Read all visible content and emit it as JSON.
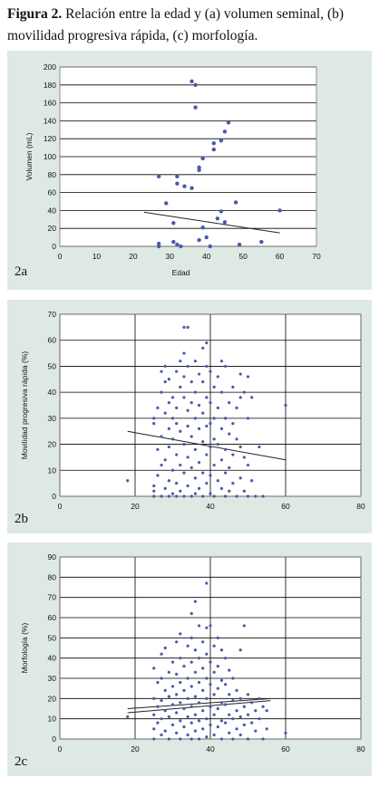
{
  "caption": {
    "label": "Figura 2.",
    "text": " Relación entre la edad y (a) volumen seminal, (b) movilidad progresiva rápida, (c) morfología."
  },
  "colors": {
    "panel_bg": "#dfe9e4",
    "marker": "#4a5aa8",
    "grid": "#000000",
    "trend": "#222222"
  },
  "chart_data": [
    {
      "panel_label": "2a",
      "type": "scatter",
      "xlabel": "Edad",
      "ylabel": "Volumen (mL)",
      "xlim": [
        0,
        70
      ],
      "ylim": [
        0,
        200
      ],
      "xticks": [
        0,
        10,
        20,
        30,
        40,
        50,
        60,
        70
      ],
      "yticks": [
        0,
        20,
        40,
        60,
        80,
        100,
        120,
        140,
        160,
        180,
        200
      ],
      "xtick_labels": [
        "0",
        "10",
        "20",
        "30",
        "40",
        "50",
        "60",
        "70"
      ],
      "ytick_labels": [
        "0",
        "20",
        "40",
        "60",
        "80",
        "100",
        "120",
        "140",
        "160",
        "180",
        "200"
      ],
      "vgrid": false,
      "hgrid": true,
      "marker_size": 2.2,
      "trend": [
        [
          23,
          38
        ],
        [
          60,
          15
        ]
      ],
      "points": [
        [
          27,
          78
        ],
        [
          27,
          3
        ],
        [
          27,
          0
        ],
        [
          29,
          48
        ],
        [
          31,
          26
        ],
        [
          31,
          5
        ],
        [
          32,
          78
        ],
        [
          32,
          70
        ],
        [
          33,
          0
        ],
        [
          32,
          2
        ],
        [
          34,
          67
        ],
        [
          36,
          65
        ],
        [
          36,
          184
        ],
        [
          37,
          180
        ],
        [
          37,
          155
        ],
        [
          38,
          88
        ],
        [
          38,
          85
        ],
        [
          38,
          7
        ],
        [
          39,
          98
        ],
        [
          39,
          21
        ],
        [
          40,
          10
        ],
        [
          41,
          0
        ],
        [
          42,
          115
        ],
        [
          42,
          108
        ],
        [
          43,
          31
        ],
        [
          44,
          118
        ],
        [
          44,
          39
        ],
        [
          45,
          128
        ],
        [
          45,
          27
        ],
        [
          46,
          138
        ],
        [
          48,
          49
        ],
        [
          49,
          2
        ],
        [
          55,
          5
        ],
        [
          60,
          40
        ]
      ]
    },
    {
      "panel_label": "2b",
      "type": "scatter",
      "xlabel": "",
      "ylabel": "Movilidad progresiva rápida (%)",
      "xlim": [
        0,
        80
      ],
      "ylim": [
        0,
        70
      ],
      "xticks": [
        0,
        20,
        40,
        60,
        80
      ],
      "yticks": [
        0,
        10,
        20,
        30,
        40,
        50,
        60,
        70
      ],
      "xtick_labels": [
        "0",
        "20",
        "40",
        "60",
        "80"
      ],
      "ytick_labels": [
        "0",
        "10",
        "20",
        "30",
        "40",
        "50",
        "60",
        "70"
      ],
      "vgrid": true,
      "hgrid": true,
      "marker_size": 1.6,
      "trend": [
        [
          18,
          25
        ],
        [
          60,
          14
        ]
      ],
      "points": [
        [
          18,
          6
        ],
        [
          25,
          30
        ],
        [
          25,
          28
        ],
        [
          25,
          4
        ],
        [
          25,
          2
        ],
        [
          25,
          0
        ],
        [
          26,
          34
        ],
        [
          26,
          18
        ],
        [
          26,
          8
        ],
        [
          27,
          48
        ],
        [
          27,
          40
        ],
        [
          27,
          23
        ],
        [
          27,
          12
        ],
        [
          27,
          0
        ],
        [
          28,
          50
        ],
        [
          28,
          44
        ],
        [
          28,
          32
        ],
        [
          28,
          14
        ],
        [
          28,
          3
        ],
        [
          29,
          45
        ],
        [
          29,
          36
        ],
        [
          29,
          26
        ],
        [
          29,
          19
        ],
        [
          29,
          6
        ],
        [
          29,
          0
        ],
        [
          30,
          38
        ],
        [
          30,
          30
        ],
        [
          30,
          22
        ],
        [
          30,
          10
        ],
        [
          30,
          1
        ],
        [
          31,
          48
        ],
        [
          31,
          34
        ],
        [
          31,
          28
        ],
        [
          31,
          16
        ],
        [
          31,
          5
        ],
        [
          31,
          0
        ],
        [
          32,
          52
        ],
        [
          32,
          42
        ],
        [
          32,
          25
        ],
        [
          32,
          12
        ],
        [
          32,
          2
        ],
        [
          33,
          65
        ],
        [
          33,
          55
        ],
        [
          33,
          46
        ],
        [
          33,
          38
        ],
        [
          33,
          20
        ],
        [
          33,
          9
        ],
        [
          33,
          0
        ],
        [
          34,
          65
        ],
        [
          34,
          50
        ],
        [
          34,
          33
        ],
        [
          34,
          27
        ],
        [
          34,
          15
        ],
        [
          34,
          4
        ],
        [
          35,
          44
        ],
        [
          35,
          36
        ],
        [
          35,
          23
        ],
        [
          35,
          11
        ],
        [
          35,
          0
        ],
        [
          36,
          52
        ],
        [
          36,
          40
        ],
        [
          36,
          30
        ],
        [
          36,
          18
        ],
        [
          36,
          7
        ],
        [
          36,
          1
        ],
        [
          37,
          47
        ],
        [
          37,
          35
        ],
        [
          37,
          26
        ],
        [
          37,
          13
        ],
        [
          37,
          3
        ],
        [
          38,
          57
        ],
        [
          38,
          44
        ],
        [
          38,
          32
        ],
        [
          38,
          21
        ],
        [
          38,
          9
        ],
        [
          38,
          0
        ],
        [
          39,
          59
        ],
        [
          39,
          50
        ],
        [
          39,
          38
        ],
        [
          39,
          27
        ],
        [
          39,
          16
        ],
        [
          39,
          5
        ],
        [
          40,
          48
        ],
        [
          40,
          36
        ],
        [
          40,
          28
        ],
        [
          40,
          19
        ],
        [
          40,
          8
        ],
        [
          40,
          1
        ],
        [
          41,
          42
        ],
        [
          41,
          30
        ],
        [
          41,
          22
        ],
        [
          41,
          12
        ],
        [
          41,
          0
        ],
        [
          42,
          46
        ],
        [
          42,
          34
        ],
        [
          42,
          20
        ],
        [
          42,
          6
        ],
        [
          43,
          52
        ],
        [
          43,
          40
        ],
        [
          43,
          26
        ],
        [
          43,
          14
        ],
        [
          43,
          3
        ],
        [
          44,
          50
        ],
        [
          44,
          30
        ],
        [
          44,
          18
        ],
        [
          44,
          9
        ],
        [
          44,
          0
        ],
        [
          45,
          36
        ],
        [
          45,
          24
        ],
        [
          45,
          11
        ],
        [
          45,
          2
        ],
        [
          46,
          42
        ],
        [
          46,
          28
        ],
        [
          46,
          16
        ],
        [
          46,
          5
        ],
        [
          47,
          34
        ],
        [
          47,
          22
        ],
        [
          47,
          0
        ],
        [
          48,
          47
        ],
        [
          48,
          38
        ],
        [
          48,
          19
        ],
        [
          48,
          7
        ],
        [
          49,
          40
        ],
        [
          49,
          15
        ],
        [
          49,
          2
        ],
        [
          50,
          46
        ],
        [
          50,
          30
        ],
        [
          50,
          12
        ],
        [
          50,
          0
        ],
        [
          51,
          38
        ],
        [
          51,
          6
        ],
        [
          52,
          0
        ],
        [
          53,
          19
        ],
        [
          54,
          0
        ],
        [
          60,
          35
        ]
      ]
    },
    {
      "panel_label": "2c",
      "type": "scatter",
      "xlabel": "",
      "ylabel": "Morfología (%)",
      "xlim": [
        0,
        80
      ],
      "ylim": [
        0,
        90
      ],
      "xticks": [
        0,
        20,
        40,
        60,
        80
      ],
      "yticks": [
        0,
        10,
        20,
        30,
        40,
        50,
        60,
        70,
        80,
        90
      ],
      "xtick_labels": [
        "0",
        "20",
        "40",
        "60",
        "80"
      ],
      "ytick_labels": [
        "0",
        "10",
        "20",
        "30",
        "40",
        "50",
        "60",
        "70",
        "80",
        "90"
      ],
      "vgrid": true,
      "hgrid": true,
      "marker_size": 1.6,
      "trend": [
        [
          18,
          15
        ],
        [
          56,
          20
        ]
      ],
      "trend2": [
        [
          18,
          13
        ],
        [
          56,
          19
        ]
      ],
      "points": [
        [
          18,
          11
        ],
        [
          25,
          35
        ],
        [
          25,
          20
        ],
        [
          25,
          12
        ],
        [
          25,
          5
        ],
        [
          25,
          0
        ],
        [
          26,
          28
        ],
        [
          26,
          16
        ],
        [
          26,
          8
        ],
        [
          27,
          42
        ],
        [
          27,
          30
        ],
        [
          27,
          19
        ],
        [
          27,
          10
        ],
        [
          27,
          2
        ],
        [
          28,
          45
        ],
        [
          28,
          24
        ],
        [
          28,
          14
        ],
        [
          28,
          4
        ],
        [
          29,
          33
        ],
        [
          29,
          21
        ],
        [
          29,
          11
        ],
        [
          29,
          0
        ],
        [
          30,
          38
        ],
        [
          30,
          26
        ],
        [
          30,
          17
        ],
        [
          30,
          7
        ],
        [
          31,
          48
        ],
        [
          31,
          32
        ],
        [
          31,
          22
        ],
        [
          31,
          13
        ],
        [
          31,
          3
        ],
        [
          32,
          52
        ],
        [
          32,
          40
        ],
        [
          32,
          28
        ],
        [
          32,
          18
        ],
        [
          32,
          9
        ],
        [
          32,
          0
        ],
        [
          33,
          36
        ],
        [
          33,
          24
        ],
        [
          33,
          15
        ],
        [
          33,
          6
        ],
        [
          34,
          46
        ],
        [
          34,
          30
        ],
        [
          34,
          20
        ],
        [
          34,
          11
        ],
        [
          34,
          2
        ],
        [
          35,
          62
        ],
        [
          35,
          50
        ],
        [
          35,
          38
        ],
        [
          35,
          26
        ],
        [
          35,
          16
        ],
        [
          35,
          8
        ],
        [
          35,
          0
        ],
        [
          36,
          68
        ],
        [
          36,
          44
        ],
        [
          36,
          33
        ],
        [
          36,
          21
        ],
        [
          36,
          12
        ],
        [
          36,
          4
        ],
        [
          37,
          56
        ],
        [
          37,
          40
        ],
        [
          37,
          28
        ],
        [
          37,
          18
        ],
        [
          37,
          9
        ],
        [
          37,
          0
        ],
        [
          38,
          48
        ],
        [
          38,
          35
        ],
        [
          38,
          24
        ],
        [
          38,
          14
        ],
        [
          38,
          5
        ],
        [
          39,
          77
        ],
        [
          39,
          55
        ],
        [
          39,
          42
        ],
        [
          39,
          30
        ],
        [
          39,
          20
        ],
        [
          39,
          10
        ],
        [
          39,
          1
        ],
        [
          40,
          56
        ],
        [
          40,
          38
        ],
        [
          40,
          27
        ],
        [
          40,
          16
        ],
        [
          40,
          7
        ],
        [
          41,
          46
        ],
        [
          41,
          33
        ],
        [
          41,
          22
        ],
        [
          41,
          12
        ],
        [
          41,
          2
        ],
        [
          42,
          50
        ],
        [
          42,
          36
        ],
        [
          42,
          25
        ],
        [
          42,
          15
        ],
        [
          42,
          6
        ],
        [
          43,
          44
        ],
        [
          43,
          29
        ],
        [
          43,
          18
        ],
        [
          43,
          9
        ],
        [
          43,
          0
        ],
        [
          44,
          40
        ],
        [
          44,
          27
        ],
        [
          44,
          17
        ],
        [
          44,
          8
        ],
        [
          45,
          34
        ],
        [
          45,
          22
        ],
        [
          45,
          12
        ],
        [
          45,
          3
        ],
        [
          46,
          30
        ],
        [
          46,
          19
        ],
        [
          46,
          10
        ],
        [
          46,
          0
        ],
        [
          47,
          24
        ],
        [
          47,
          14
        ],
        [
          47,
          5
        ],
        [
          48,
          44
        ],
        [
          48,
          20
        ],
        [
          48,
          11
        ],
        [
          48,
          2
        ],
        [
          49,
          56
        ],
        [
          49,
          16
        ],
        [
          49,
          7
        ],
        [
          50,
          22
        ],
        [
          50,
          12
        ],
        [
          50,
          0
        ],
        [
          51,
          18
        ],
        [
          51,
          8
        ],
        [
          52,
          14
        ],
        [
          52,
          4
        ],
        [
          53,
          20
        ],
        [
          53,
          10
        ],
        [
          54,
          16
        ],
        [
          54,
          0
        ],
        [
          55,
          14
        ],
        [
          55,
          5
        ],
        [
          60,
          3
        ]
      ]
    }
  ]
}
